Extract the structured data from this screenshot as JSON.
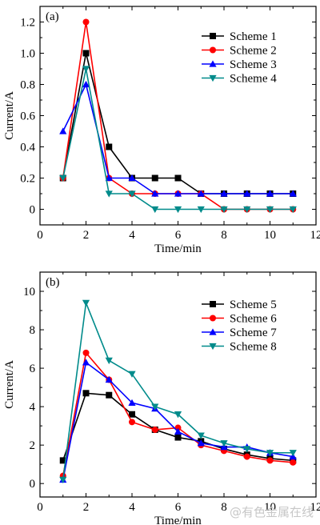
{
  "chart_data": [
    {
      "type": "line",
      "panel_label": "(a)",
      "xlabel": "Time/min",
      "ylabel": "Current/A",
      "xlim": [
        0,
        12
      ],
      "ylim": [
        -0.1,
        1.3
      ],
      "xticks": [
        0,
        2,
        4,
        6,
        8,
        10,
        12
      ],
      "yticks": [
        0,
        0.2,
        0.4,
        0.6,
        0.8,
        1.0,
        1.2
      ],
      "ytick_labels": [
        "0",
        "0.2",
        "0.4",
        "0.6",
        "0.8",
        "1.0",
        "1.2"
      ],
      "legend_position": "top-right",
      "grid": false,
      "series": [
        {
          "name": "Scheme 1",
          "color": "#000000",
          "marker": "square",
          "x": [
            1,
            2,
            3,
            4,
            5,
            6,
            7,
            8,
            9,
            10,
            11
          ],
          "y": [
            0.2,
            1.0,
            0.4,
            0.2,
            0.2,
            0.2,
            0.1,
            0.1,
            0.1,
            0.1,
            0.1
          ]
        },
        {
          "name": "Scheme 2",
          "color": "#ff0000",
          "marker": "circle",
          "x": [
            1,
            2,
            3,
            4,
            5,
            6,
            7,
            8,
            9,
            10,
            11
          ],
          "y": [
            0.2,
            1.2,
            0.2,
            0.1,
            0.1,
            0.1,
            0.1,
            0.0,
            0.0,
            0.0,
            0.0
          ]
        },
        {
          "name": "Scheme 3",
          "color": "#0000ff",
          "marker": "triangle-up",
          "x": [
            1,
            2,
            3,
            4,
            5,
            6,
            7,
            8,
            9,
            10,
            11
          ],
          "y": [
            0.5,
            0.8,
            0.2,
            0.2,
            0.1,
            0.1,
            0.1,
            0.1,
            0.1,
            0.1,
            0.1
          ]
        },
        {
          "name": "Scheme 4",
          "color": "#008b8b",
          "marker": "triangle-down",
          "x": [
            1,
            2,
            3,
            4,
            5,
            6,
            7,
            8,
            9,
            10,
            11
          ],
          "y": [
            0.2,
            0.9,
            0.1,
            0.1,
            0.0,
            0.0,
            0.0,
            0.0,
            0.0,
            0.0,
            0.0
          ]
        }
      ]
    },
    {
      "type": "line",
      "panel_label": "(b)",
      "xlabel": "Time/min",
      "ylabel": "Current/A",
      "xlim": [
        0,
        12
      ],
      "ylim": [
        -0.7,
        11
      ],
      "xticks": [
        0,
        2,
        4,
        6,
        8,
        10,
        12
      ],
      "yticks": [
        0,
        2,
        4,
        6,
        8,
        10
      ],
      "ytick_labels": [
        "0",
        "2",
        "4",
        "6",
        "8",
        "10"
      ],
      "legend_position": "top-right",
      "grid": false,
      "series": [
        {
          "name": "Scheme 5",
          "color": "#000000",
          "marker": "square",
          "x": [
            1,
            2,
            3,
            4,
            5,
            6,
            7,
            8,
            9,
            10,
            11
          ],
          "y": [
            1.2,
            4.7,
            4.6,
            3.6,
            2.8,
            2.4,
            2.2,
            1.8,
            1.5,
            1.3,
            1.2
          ]
        },
        {
          "name": "Scheme 6",
          "color": "#ff0000",
          "marker": "circle",
          "x": [
            1,
            2,
            3,
            4,
            5,
            6,
            7,
            8,
            9,
            10,
            11
          ],
          "y": [
            0.4,
            6.8,
            5.4,
            3.2,
            2.8,
            2.9,
            2.0,
            1.7,
            1.4,
            1.2,
            1.1
          ]
        },
        {
          "name": "Scheme 7",
          "color": "#0000ff",
          "marker": "triangle-up",
          "x": [
            1,
            2,
            3,
            4,
            5,
            6,
            7,
            8,
            9,
            10,
            11
          ],
          "y": [
            0.2,
            6.3,
            5.4,
            4.2,
            3.9,
            2.7,
            2.1,
            1.9,
            1.9,
            1.6,
            1.4
          ]
        },
        {
          "name": "Scheme 8",
          "color": "#008b8b",
          "marker": "triangle-down",
          "x": [
            1,
            2,
            3,
            4,
            5,
            6,
            7,
            8,
            9,
            10,
            11
          ],
          "y": [
            0.2,
            9.4,
            6.4,
            5.7,
            4.0,
            3.6,
            2.5,
            2.1,
            1.8,
            1.6,
            1.6
          ]
        }
      ]
    }
  ],
  "watermark": "@有色金属在线"
}
